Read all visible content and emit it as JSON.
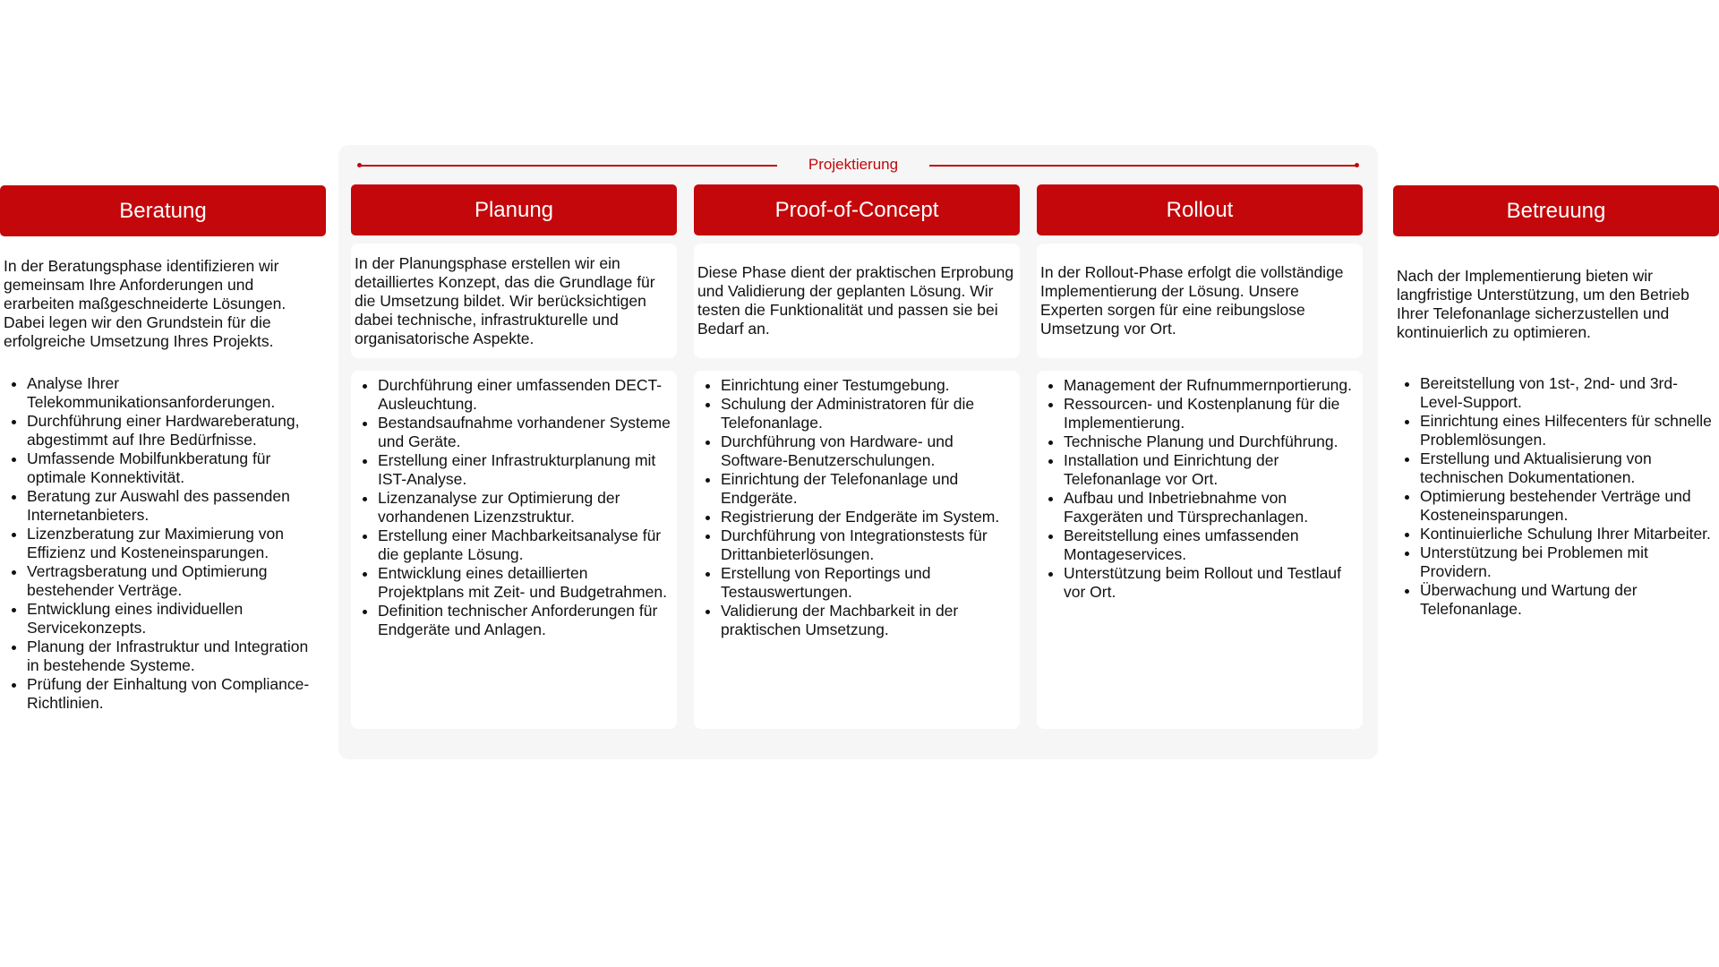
{
  "projektierung": {
    "label": "Projektierung",
    "color": "#c4070a"
  },
  "phases": [
    {
      "title": "Beratung",
      "description": "In der Beratungsphase identifizieren wir gemeinsam Ihre Anforderungen und erarbeiten maßgeschneiderte Lösungen. Dabei legen wir den Grundstein für die erfolgreiche Umsetzung Ihres Projekts.",
      "items": [
        "Analyse Ihrer Telekommunikationsanforderungen.",
        "Durchführung einer Hardwareberatung, abgestimmt auf Ihre Bedürfnisse.",
        "Umfassende Mobilfunkberatung für optimale Konnektivität.",
        "Beratung zur Auswahl des passenden Internetanbieters.",
        "Lizenzberatung zur Maximierung von Effizienz und Kosteneinsparungen.",
        "Vertragsberatung und Optimierung bestehender Verträge.",
        "Entwicklung eines individuellen Servicekonzepts.",
        "Planung der Infrastruktur und Integration in bestehende Systeme.",
        "Prüfung der Einhaltung von Compliance-Richtlinien."
      ]
    },
    {
      "title": "Planung",
      "description": "In der Planungsphase erstellen wir ein detailliertes Konzept, das die Grundlage für die Umsetzung bildet. Wir berücksichtigen dabei technische, infrastrukturelle und organisatorische Aspekte.",
      "items": [
        "Durchführung einer umfassenden DECT-Ausleuchtung.",
        "Bestandsaufnahme vorhandener Systeme und Geräte.",
        "Erstellung einer Infrastrukturplanung mit IST-Analyse.",
        "Lizenzanalyse zur Optimierung der vorhandenen Lizenzstruktur.",
        "Erstellung einer Machbarkeitsanalyse für die geplante Lösung.",
        "Entwicklung eines detaillierten Projektplans mit Zeit- und Budgetrahmen.",
        "Definition technischer Anforderungen für Endgeräte und Anlagen."
      ]
    },
    {
      "title": "Proof-of-Concept",
      "description": "Diese Phase dient der praktischen Erprobung und Validierung der geplanten Lösung. Wir testen die Funktionalität und passen sie bei Bedarf an.",
      "items": [
        "Einrichtung einer Testumgebung.",
        "Schulung der Administratoren für die Telefonanlage.",
        "Durchführung von Hardware- und Software-Benutzerschulungen.",
        "Einrichtung der Telefonanlage und Endgeräte.",
        "Registrierung der Endgeräte im System.",
        "Durchführung von Integrationstests für Drittanbieterlösungen.",
        "Erstellung von Reportings und Testauswertungen.",
        "Validierung der Machbarkeit in der praktischen Umsetzung."
      ]
    },
    {
      "title": "Rollout",
      "description": "In der Rollout-Phase erfolgt die vollständige Implementierung der Lösung. Unsere Experten sorgen für eine reibungslose Umsetzung vor Ort.",
      "items": [
        "Management der Rufnummernportierung.",
        "Ressourcen- und Kostenplanung für die Implementierung.",
        "Technische Planung und Durchführung.",
        "Installation und Einrichtung der Telefonanlage vor Ort.",
        "Aufbau und Inbetriebnahme von Faxgeräten und Türsprechanlagen.",
        "Bereitstellung eines umfassenden Montageservices.",
        "Unterstützung beim Rollout und Testlauf vor Ort."
      ]
    },
    {
      "title": "Betreuung",
      "description": "Nach der Implementierung bieten wir langfristige Unterstützung, um den Betrieb Ihrer Telefonanlage sicherzustellen und kontinuierlich zu optimieren.",
      "items": [
        "Bereitstellung von 1st-, 2nd- und 3rd-Level-Support.",
        "Einrichtung eines Hilfecenters für schnelle Problemlösungen.",
        "Erstellung und Aktualisierung von technischen Dokumentationen.",
        "Optimierung bestehender Verträge und Kosteneinsparungen.",
        "Kontinuierliche Schulung Ihrer Mitarbeiter.",
        "Unterstützung bei Problemen mit Providern.",
        "Überwachung und Wartung der Telefonanlage."
      ]
    }
  ]
}
